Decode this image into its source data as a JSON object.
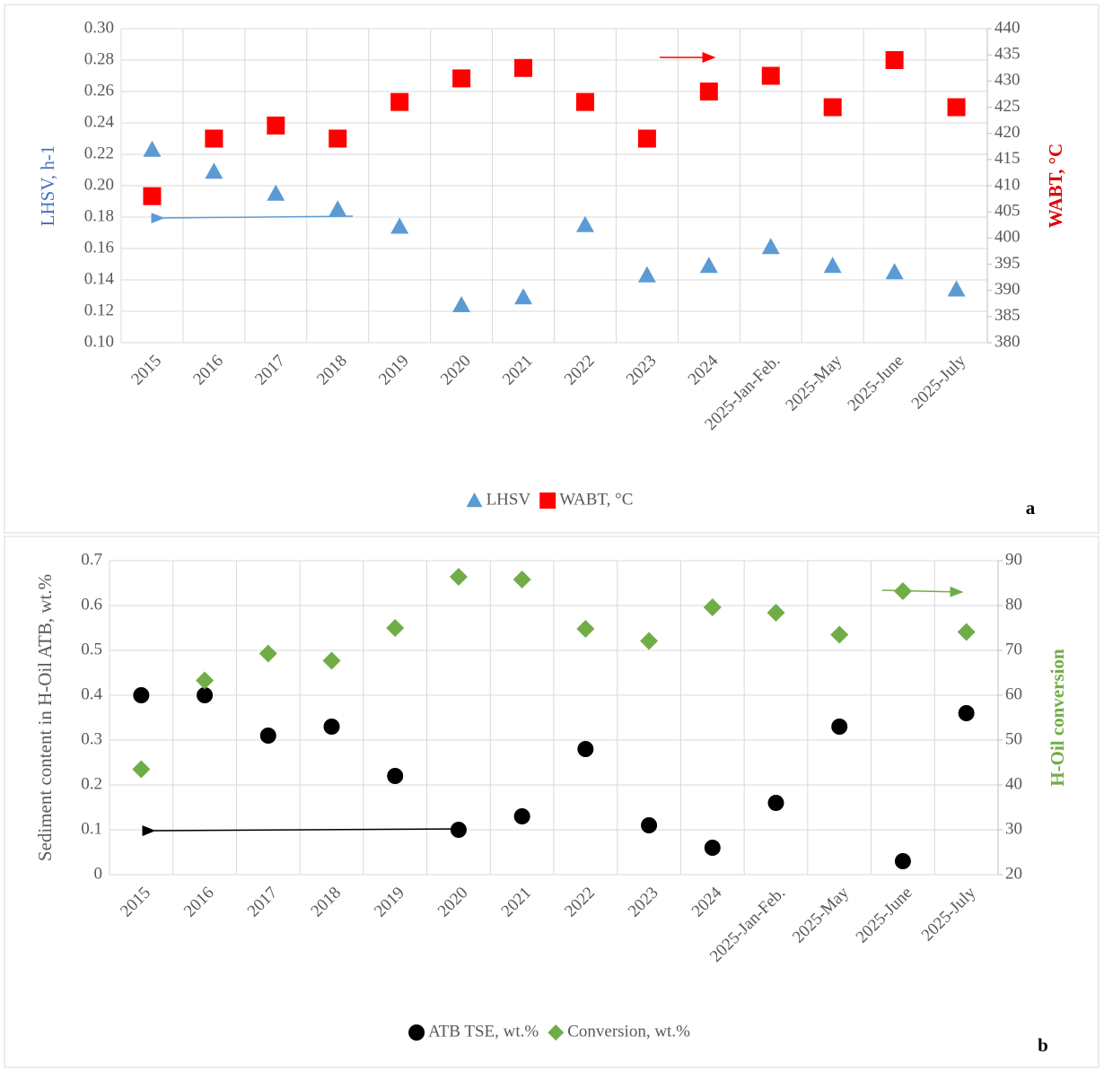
{
  "chart_data": [
    {
      "type": "scatter",
      "panel_label": "a",
      "ylabel": "LHSV, h-1",
      "ylabel_color": "#4472c4",
      "y2label": "WABT, °C",
      "y2label_color": "#e00000",
      "categories": [
        "2015",
        "2016",
        "2017",
        "2018",
        "2019",
        "2020",
        "2021",
        "2022",
        "2023",
        "2024",
        "2025-Jan-Feb.",
        "2025-May",
        "2025-June",
        "2025-July"
      ],
      "series": [
        {
          "name": "LHSV",
          "color": "#5b9bd5",
          "marker": "triangle",
          "axis": "y",
          "values": [
            0.223,
            0.209,
            0.195,
            0.185,
            0.174,
            0.124,
            0.129,
            0.175,
            0.143,
            0.149,
            0.161,
            0.149,
            0.145,
            0.134
          ]
        },
        {
          "name": "WABT, °C",
          "color": "#ff0000",
          "marker": "square",
          "axis": "y2",
          "values": [
            408,
            419,
            421.5,
            419,
            426,
            430.5,
            432.5,
            426,
            419,
            428,
            431,
            425,
            434,
            425
          ]
        }
      ],
      "ylim": [
        0.1,
        0.3
      ],
      "yticks": [
        {
          "value": 0.1,
          "label": "0.10"
        },
        {
          "value": 0.12,
          "label": "0.12"
        },
        {
          "value": 0.14,
          "label": "0.14"
        },
        {
          "value": 0.16,
          "label": "0.16"
        },
        {
          "value": 0.18,
          "label": "0.18"
        },
        {
          "value": 0.2,
          "label": "0.20"
        },
        {
          "value": 0.22,
          "label": "0.22"
        },
        {
          "value": 0.24,
          "label": "0.24"
        },
        {
          "value": 0.26,
          "label": "0.26"
        },
        {
          "value": 0.28,
          "label": "0.28"
        },
        {
          "value": 0.3,
          "label": "0.30"
        }
      ],
      "y2lim": [
        380,
        440
      ],
      "y2ticks": [
        380,
        385,
        390,
        395,
        400,
        405,
        410,
        415,
        420,
        425,
        430,
        435,
        440
      ],
      "grid": true,
      "legend": "bottom"
    },
    {
      "type": "scatter",
      "panel_label": "b",
      "ylabel": "Sediment content in H-Oil ATB, wt.%",
      "ylabel_color": "#595959",
      "y2label": "H-Oil conversion",
      "y2label_color": "#70ad47",
      "categories": [
        "2015",
        "2016",
        "2017",
        "2018",
        "2019",
        "2020",
        "2021",
        "2022",
        "2023",
        "2024",
        "2025-Jan-Feb.",
        "2025-May",
        "2025-June",
        "2025-July"
      ],
      "series": [
        {
          "name": "ATB TSE, wt.%",
          "color": "#000000",
          "marker": "circle",
          "axis": "y",
          "values": [
            0.4,
            0.4,
            0.31,
            0.33,
            0.22,
            0.1,
            0.13,
            0.28,
            0.11,
            0.06,
            0.16,
            0.33,
            0.03,
            0.36
          ]
        },
        {
          "name": "Conversion, wt.%",
          "color": "#70ad47",
          "marker": "diamond",
          "axis": "y2",
          "values": [
            43.5,
            63.3,
            69.3,
            67.7,
            75,
            86.4,
            85.8,
            74.8,
            72.1,
            79.6,
            78.4,
            73.5,
            83.2,
            74.1
          ]
        }
      ],
      "ylim": [
        0,
        0.7
      ],
      "yticks": [
        0,
        0.1,
        0.2,
        0.3,
        0.4,
        0.5,
        0.6,
        0.7
      ],
      "y2lim": [
        20,
        90
      ],
      "y2ticks": [
        20,
        30,
        40,
        50,
        60,
        70,
        80,
        90
      ],
      "grid": true,
      "legend": "bottom"
    }
  ]
}
